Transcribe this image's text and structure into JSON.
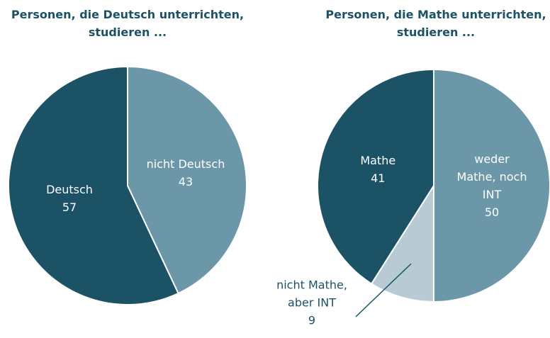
{
  "chart_data": [
    {
      "type": "pie",
      "title": "Personen, die Deutsch unterrichten, studieren ...",
      "categories": [
        "nicht Deutsch",
        "Deutsch"
      ],
      "values": [
        43,
        57
      ],
      "colors": [
        "#6b97a9",
        "#1c5266"
      ]
    },
    {
      "type": "pie",
      "title": "Personen, die Mathe unterrichten, studieren ...",
      "categories": [
        "weder Mathe, noch INT",
        "nicht Mathe, aber INT",
        "Mathe"
      ],
      "values": [
        50,
        9,
        41
      ],
      "colors": [
        "#6b97a9",
        "#b8cbd5",
        "#1c5266"
      ]
    }
  ]
}
